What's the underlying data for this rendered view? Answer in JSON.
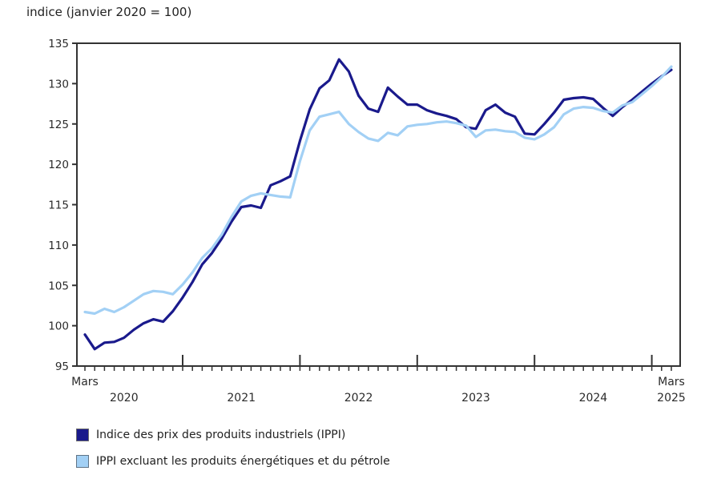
{
  "chart_data": {
    "type": "line",
    "title": "indice (janvier 2020 = 100)",
    "x_axis": {
      "start": "mars 2020",
      "end": "mars 2025",
      "frequency": "monthly",
      "months_total": 61,
      "start_tick_label": "Mars",
      "end_tick_label": "Mars",
      "end_year_label": "2025",
      "year_labels": [
        {
          "label": "2020",
          "center_month_index": 4
        },
        {
          "label": "2021",
          "center_month_index": 16
        },
        {
          "label": "2022",
          "center_month_index": 28
        },
        {
          "label": "2023",
          "center_month_index": 40
        },
        {
          "label": "2024",
          "center_month_index": 52
        }
      ],
      "year_tick_month_indices": [
        10,
        22,
        34,
        46,
        58
      ]
    },
    "y_axis": {
      "min": 95,
      "max": 135,
      "step": 5
    },
    "grid": "off",
    "legend_position": "bottom-left",
    "series": [
      {
        "name": "Indice des prix des produits industriels (IPPI)",
        "color": "#1a1a8c",
        "swatch_border": "#6a6a6a",
        "values": [
          98.9,
          97.1,
          97.9,
          98.0,
          98.5,
          99.5,
          100.3,
          100.8,
          100.5,
          101.8,
          103.5,
          105.4,
          107.6,
          109.0,
          110.8,
          112.9,
          114.7,
          114.9,
          114.6,
          117.4,
          117.9,
          118.5,
          122.9,
          126.8,
          129.4,
          130.4,
          133.0,
          131.5,
          128.5,
          126.9,
          126.5,
          129.5,
          128.4,
          127.4,
          127.4,
          126.7,
          126.3,
          126.0,
          125.6,
          124.6,
          124.4,
          126.7,
          127.4,
          126.4,
          125.9,
          123.8,
          123.7,
          125.0,
          126.4,
          128.0,
          128.2,
          128.3,
          128.1,
          127.0,
          126.0,
          127.1,
          128.0,
          129.0,
          130.0,
          130.9,
          131.7
        ]
      },
      {
        "name": "IPPI excluant les produits énergétiques et du pétrole",
        "color": "#a2d0f5",
        "swatch_border": "#5f7386",
        "values": [
          101.7,
          101.5,
          102.1,
          101.7,
          102.3,
          103.1,
          103.9,
          104.3,
          104.2,
          103.9,
          105.1,
          106.6,
          108.4,
          109.6,
          111.3,
          113.5,
          115.4,
          116.1,
          116.4,
          116.2,
          116.0,
          115.9,
          120.4,
          124.2,
          125.9,
          126.2,
          126.5,
          125.0,
          124.0,
          123.2,
          122.9,
          123.9,
          123.6,
          124.7,
          124.9,
          125.0,
          125.2,
          125.3,
          125.1,
          124.8,
          123.4,
          124.2,
          124.3,
          124.1,
          124.0,
          123.3,
          123.1,
          123.7,
          124.6,
          126.2,
          126.9,
          127.1,
          127.0,
          126.6,
          126.4,
          127.3,
          127.7,
          128.7,
          129.7,
          130.8,
          132.1
        ]
      }
    ],
    "axis_color": "#333333",
    "text_color": "#2b2b2b"
  }
}
